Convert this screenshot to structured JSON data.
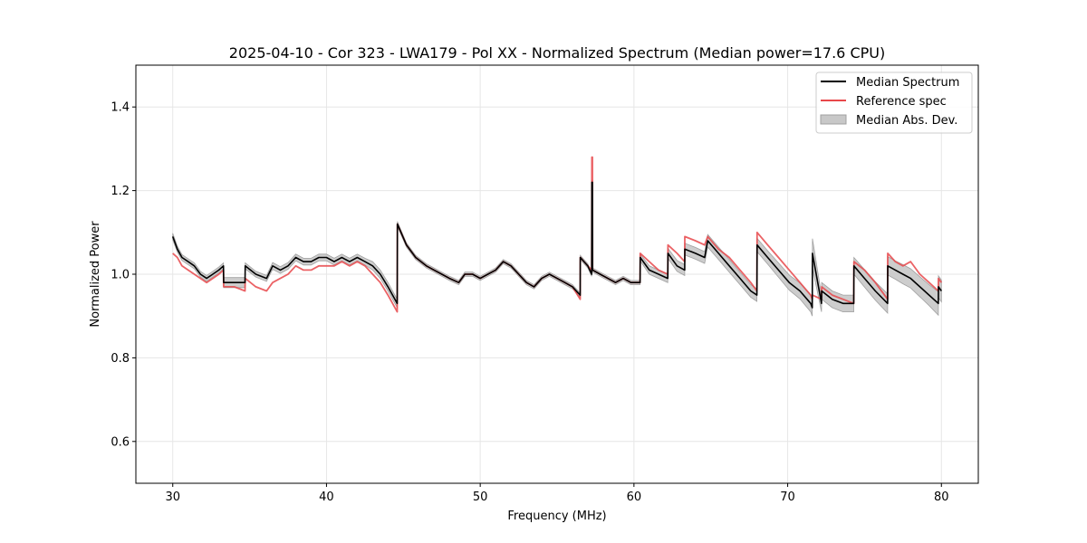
{
  "chart_data": {
    "type": "line",
    "title": "2025-04-10 - Cor 323 - LWA179 - Pol XX - Normalized Spectrum (Median power=17.6 CPU)",
    "xlabel": "Frequency (MHz)",
    "ylabel": "Normalized Power",
    "xlim": [
      27.6,
      82.4
    ],
    "ylim": [
      0.5,
      1.5
    ],
    "xticks": [
      30,
      40,
      50,
      60,
      70,
      80
    ],
    "yticks": [
      0.6,
      0.8,
      1.0,
      1.2,
      1.4
    ],
    "xtick_labels": [
      "30",
      "40",
      "50",
      "60",
      "70",
      "80"
    ],
    "ytick_labels": [
      "0.6",
      "0.8",
      "1.0",
      "1.2",
      "1.4"
    ],
    "grid": true,
    "legend_position": "top-right",
    "x": [
      30.0,
      30.3,
      30.6,
      31.0,
      31.4,
      31.8,
      32.2,
      32.6,
      33.0,
      33.3,
      33.31,
      34.0,
      34.7,
      34.71,
      35.4,
      36.1,
      36.5,
      37.0,
      37.5,
      38.0,
      38.5,
      39.0,
      39.5,
      40.0,
      40.5,
      41.0,
      41.5,
      42.0,
      42.5,
      43.0,
      43.5,
      44.0,
      44.6,
      44.61,
      45.2,
      45.8,
      46.5,
      47.0,
      47.5,
      48.0,
      48.6,
      49.0,
      49.5,
      50.0,
      50.5,
      51.0,
      51.5,
      52.0,
      52.5,
      53.0,
      53.5,
      54.0,
      54.5,
      55.0,
      55.5,
      56.0,
      56.5,
      56.51,
      57.0,
      57.25,
      57.26,
      57.3,
      57.31,
      57.8,
      58.3,
      58.8,
      59.3,
      59.8,
      60.4,
      60.41,
      61.0,
      61.6,
      62.2,
      62.21,
      62.8,
      63.3,
      63.31,
      64.0,
      64.6,
      64.8,
      65.5,
      66.2,
      66.9,
      67.6,
      68.0,
      68.01,
      68.7,
      69.4,
      70.1,
      70.8,
      71.5,
      71.6,
      71.61,
      72.2,
      72.21,
      72.9,
      73.6,
      74.3,
      74.31,
      75.0,
      75.7,
      76.5,
      76.51,
      77.0,
      77.5,
      78.0,
      78.6,
      79.2,
      79.8,
      79.81,
      80.0
    ],
    "series": [
      {
        "name": "Median Spectrum",
        "color": "#000000",
        "values": [
          1.09,
          1.06,
          1.04,
          1.03,
          1.02,
          1.0,
          0.99,
          1.0,
          1.01,
          1.02,
          0.98,
          0.98,
          0.98,
          1.02,
          1.0,
          0.99,
          1.02,
          1.01,
          1.02,
          1.04,
          1.03,
          1.03,
          1.04,
          1.04,
          1.03,
          1.04,
          1.03,
          1.04,
          1.03,
          1.02,
          1.0,
          0.97,
          0.93,
          1.12,
          1.07,
          1.04,
          1.02,
          1.01,
          1.0,
          0.99,
          0.98,
          1.0,
          1.0,
          0.99,
          1.0,
          1.01,
          1.03,
          1.02,
          1.0,
          0.98,
          0.97,
          0.99,
          1.0,
          0.99,
          0.98,
          0.97,
          0.95,
          1.04,
          1.02,
          1.0,
          1.22,
          1.22,
          1.01,
          1.0,
          0.99,
          0.98,
          0.99,
          0.98,
          0.98,
          1.04,
          1.01,
          1.0,
          0.99,
          1.05,
          1.02,
          1.01,
          1.06,
          1.05,
          1.04,
          1.08,
          1.05,
          1.02,
          0.99,
          0.96,
          0.95,
          1.07,
          1.04,
          1.01,
          0.98,
          0.96,
          0.93,
          0.92,
          1.05,
          0.93,
          0.96,
          0.94,
          0.93,
          0.93,
          1.02,
          0.99,
          0.96,
          0.93,
          1.02,
          1.01,
          1.0,
          0.99,
          0.97,
          0.95,
          0.93,
          0.97,
          0.96
        ]
      },
      {
        "name": "Reference spec",
        "color": "#e8474a",
        "values": [
          1.05,
          1.04,
          1.02,
          1.01,
          1.0,
          0.99,
          0.98,
          0.99,
          1.0,
          1.01,
          0.97,
          0.97,
          0.96,
          0.99,
          0.97,
          0.96,
          0.98,
          0.99,
          1.0,
          1.02,
          1.01,
          1.01,
          1.02,
          1.02,
          1.02,
          1.03,
          1.02,
          1.03,
          1.02,
          1.0,
          0.98,
          0.95,
          0.91,
          1.12,
          1.07,
          1.04,
          1.02,
          1.01,
          1.0,
          0.99,
          0.98,
          1.0,
          1.0,
          0.99,
          1.0,
          1.01,
          1.03,
          1.02,
          1.0,
          0.98,
          0.97,
          0.99,
          1.0,
          0.99,
          0.98,
          0.97,
          0.94,
          1.04,
          1.02,
          1.01,
          1.28,
          1.28,
          1.01,
          1.0,
          0.99,
          0.98,
          0.99,
          0.98,
          0.98,
          1.05,
          1.03,
          1.01,
          1.0,
          1.07,
          1.05,
          1.03,
          1.09,
          1.08,
          1.07,
          1.09,
          1.06,
          1.04,
          1.01,
          0.98,
          0.96,
          1.1,
          1.07,
          1.04,
          1.01,
          0.98,
          0.95,
          0.94,
          0.95,
          0.94,
          0.97,
          0.95,
          0.94,
          0.93,
          1.03,
          1.01,
          0.98,
          0.94,
          1.05,
          1.03,
          1.02,
          1.03,
          1.0,
          0.98,
          0.96,
          0.99,
          0.98
        ]
      }
    ],
    "band": {
      "name": "Median Abs. Dev.",
      "fill": "#c8c8c8",
      "edge": "#a0a0a0",
      "half_width": [
        0.008,
        0.007,
        0.007,
        0.007,
        0.007,
        0.007,
        0.007,
        0.007,
        0.007,
        0.007,
        0.012,
        0.012,
        0.012,
        0.007,
        0.007,
        0.007,
        0.008,
        0.008,
        0.008,
        0.008,
        0.008,
        0.008,
        0.008,
        0.008,
        0.008,
        0.008,
        0.008,
        0.008,
        0.008,
        0.01,
        0.01,
        0.01,
        0.01,
        0.006,
        0.005,
        0.005,
        0.005,
        0.005,
        0.005,
        0.005,
        0.005,
        0.005,
        0.005,
        0.005,
        0.005,
        0.005,
        0.005,
        0.005,
        0.005,
        0.005,
        0.005,
        0.005,
        0.005,
        0.005,
        0.005,
        0.005,
        0.005,
        0.005,
        0.005,
        0.005,
        0.005,
        0.005,
        0.005,
        0.005,
        0.005,
        0.005,
        0.005,
        0.005,
        0.005,
        0.008,
        0.01,
        0.01,
        0.01,
        0.012,
        0.013,
        0.013,
        0.014,
        0.014,
        0.014,
        0.015,
        0.015,
        0.015,
        0.015,
        0.015,
        0.015,
        0.016,
        0.016,
        0.017,
        0.018,
        0.019,
        0.02,
        0.02,
        0.035,
        0.02,
        0.02,
        0.02,
        0.02,
        0.02,
        0.02,
        0.021,
        0.022,
        0.023,
        0.022,
        0.022,
        0.023,
        0.023,
        0.024,
        0.025,
        0.028,
        0.026,
        0.026
      ]
    }
  }
}
